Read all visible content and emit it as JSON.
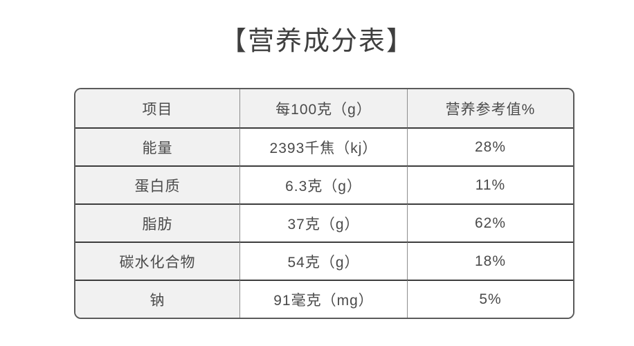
{
  "title": "【营养成分表】",
  "table": {
    "headers": [
      "项目",
      "每100克（g）",
      "营养参考值%"
    ],
    "rows": [
      {
        "item": "能量",
        "amount": "2393千焦（kj）",
        "nrv": "28%"
      },
      {
        "item": "蛋白质",
        "amount": "6.3克（g）",
        "nrv": "11%"
      },
      {
        "item": "脂肪",
        "amount": "37克（g）",
        "nrv": "62%"
      },
      {
        "item": "碳水化合物",
        "amount": "54克（g）",
        "nrv": "18%"
      },
      {
        "item": "钠",
        "amount": "91毫克（mg）",
        "nrv": "5%"
      }
    ]
  },
  "colors": {
    "page_background": "#ffffff",
    "shaded_cell_background": "#f1f1f1",
    "data_cell_background": "#ffffff",
    "horizontal_border": "#3c3c3c",
    "vertical_border": "#8c8c8c",
    "outer_border": "#5a5a5a",
    "text": "#4a4a4a",
    "title_text": "#3f3f3f"
  }
}
